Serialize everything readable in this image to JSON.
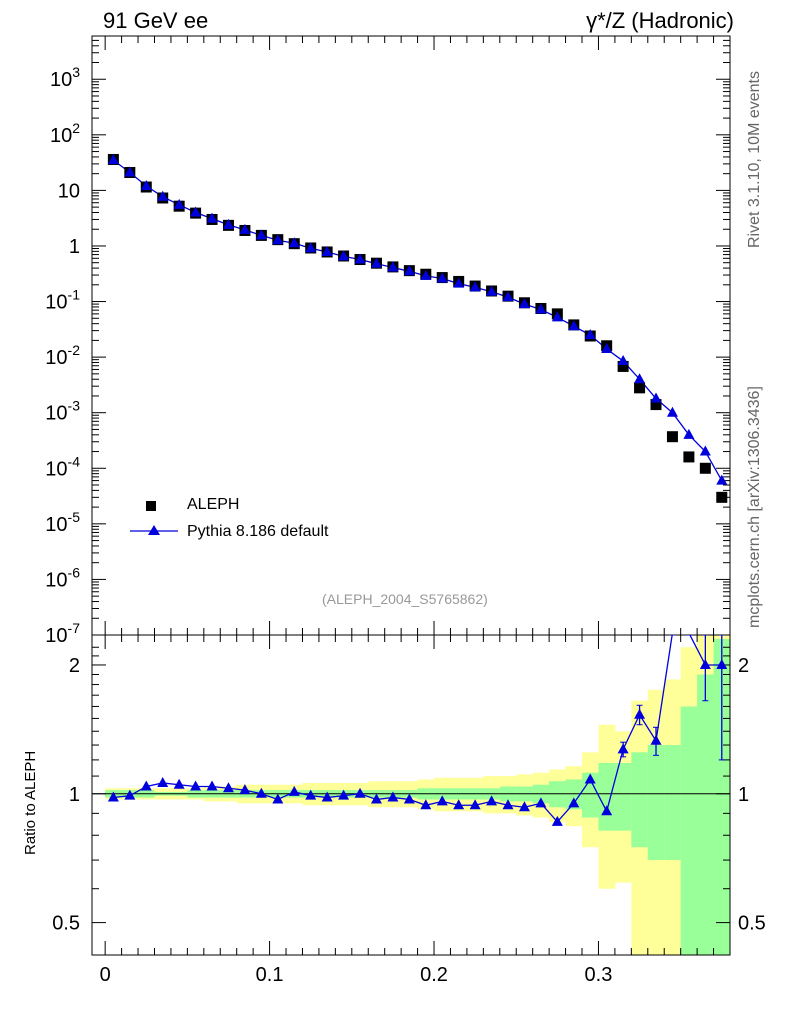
{
  "header": {
    "left_title": "91 GeV ee",
    "right_title": "γ*/Z (Hadronic)"
  },
  "side_texts": {
    "rivet": "Rivet 3.1.10,  10M events",
    "source": "mcplots.cern.ch [arXiv:1306.3436]"
  },
  "analysis_tag": "(ALEPH_2004_S5765862)",
  "colors": {
    "data": "#000000",
    "mc": "#0000dd",
    "band_stat": "#99ff99",
    "band_total": "#ffff99",
    "axis": "#000000"
  },
  "chart_data": [
    {
      "type": "scatter",
      "panel": "main",
      "yscale": "log",
      "xlim": [
        -0.008,
        0.38
      ],
      "ylim": [
        1e-07,
        6000
      ],
      "y_ticks": [
        "10^-7",
        "10^-6",
        "10^-5",
        "10^-4",
        "10^-3",
        "10^-2",
        "10^-1",
        "1",
        "10",
        "10^2",
        "10^3"
      ],
      "legend": {
        "position": "lower-left",
        "entries": [
          "ALEPH",
          "Pythia 8.186 default"
        ]
      },
      "x": [
        0.005,
        0.015,
        0.025,
        0.035,
        0.045,
        0.055,
        0.065,
        0.075,
        0.085,
        0.095,
        0.105,
        0.115,
        0.125,
        0.135,
        0.145,
        0.155,
        0.165,
        0.175,
        0.185,
        0.195,
        0.205,
        0.215,
        0.225,
        0.235,
        0.245,
        0.255,
        0.265,
        0.275,
        0.285,
        0.295,
        0.305,
        0.315,
        0.325,
        0.335,
        0.345,
        0.355,
        0.365,
        0.375
      ],
      "series": [
        {
          "name": "ALEPH",
          "marker": "square",
          "values": [
            36,
            21,
            11.5,
            7.3,
            5.2,
            3.9,
            3.0,
            2.35,
            1.9,
            1.55,
            1.3,
            1.1,
            0.92,
            0.78,
            0.66,
            0.57,
            0.49,
            0.42,
            0.36,
            0.31,
            0.27,
            0.23,
            0.19,
            0.155,
            0.125,
            0.095,
            0.075,
            0.06,
            0.038,
            0.024,
            0.016,
            0.0068,
            0.0028,
            0.0014,
            0.00037,
            0.00016,
            0.0001,
            3e-05
          ]
        },
        {
          "name": "Pythia 8.186 default",
          "marker": "triangle",
          "values": [
            35,
            21,
            12,
            7.7,
            5.5,
            4.0,
            3.1,
            2.4,
            1.95,
            1.55,
            1.27,
            1.12,
            0.91,
            0.78,
            0.65,
            0.57,
            0.48,
            0.41,
            0.35,
            0.29,
            0.26,
            0.21,
            0.18,
            0.15,
            0.12,
            0.09,
            0.072,
            0.052,
            0.036,
            0.025,
            0.014,
            0.0085,
            0.004,
            0.0018,
            0.001,
            0.0004,
            0.0002,
            6e-05
          ]
        }
      ]
    },
    {
      "type": "line",
      "panel": "ratio",
      "yscale": "log",
      "ylabel": "Ratio to ALEPH",
      "xlim": [
        -0.008,
        0.38
      ],
      "ylim": [
        0.42,
        2.35
      ],
      "x_ticks": [
        "0",
        "0.1",
        "0.2",
        "0.3"
      ],
      "y_ticks": [
        "0.5",
        "1",
        "2"
      ],
      "x": [
        0.005,
        0.015,
        0.025,
        0.035,
        0.045,
        0.055,
        0.065,
        0.075,
        0.085,
        0.095,
        0.105,
        0.115,
        0.125,
        0.135,
        0.145,
        0.155,
        0.165,
        0.175,
        0.185,
        0.195,
        0.205,
        0.215,
        0.225,
        0.235,
        0.245,
        0.255,
        0.265,
        0.275,
        0.285,
        0.295,
        0.305,
        0.315,
        0.325,
        0.335,
        0.345,
        0.355,
        0.365,
        0.375
      ],
      "series": [
        {
          "name": "Pythia 8.186 default",
          "values": [
            0.98,
            0.99,
            1.04,
            1.06,
            1.05,
            1.04,
            1.04,
            1.03,
            1.02,
            1.0,
            0.97,
            1.01,
            0.99,
            0.98,
            0.99,
            1.0,
            0.97,
            0.98,
            0.97,
            0.94,
            0.96,
            0.94,
            0.94,
            0.96,
            0.94,
            0.93,
            0.95,
            0.86,
            0.95,
            1.08,
            0.91,
            1.27,
            1.53,
            1.33,
            2.7,
            3.0,
            2.0,
            2.0
          ],
          "errors": [
            0.005,
            0.005,
            0.005,
            0.005,
            0.005,
            0.005,
            0.005,
            0.005,
            0.005,
            0.005,
            0.005,
            0.005,
            0.005,
            0.005,
            0.005,
            0.005,
            0.005,
            0.005,
            0.005,
            0.005,
            0.005,
            0.005,
            0.005,
            0.005,
            0.005,
            0.005,
            0.005,
            0.01,
            0.01,
            0.02,
            0.02,
            0.05,
            0.08,
            0.1,
            0.2,
            0.3,
            0.35,
            0.8
          ]
        }
      ],
      "bands": {
        "stat_lo": [
          0.98,
          0.98,
          0.98,
          0.99,
          0.99,
          0.98,
          0.98,
          0.98,
          0.98,
          0.98,
          0.98,
          0.98,
          0.98,
          0.98,
          0.98,
          0.98,
          0.98,
          0.98,
          0.98,
          0.97,
          0.97,
          0.97,
          0.97,
          0.97,
          0.96,
          0.96,
          0.95,
          0.93,
          0.92,
          0.88,
          0.82,
          0.82,
          0.75,
          0.7,
          0.7,
          0.4,
          0.4,
          0.4
        ],
        "stat_hi": [
          1.02,
          1.02,
          1.02,
          1.01,
          1.01,
          1.02,
          1.02,
          1.02,
          1.02,
          1.02,
          1.02,
          1.02,
          1.02,
          1.02,
          1.02,
          1.02,
          1.02,
          1.02,
          1.02,
          1.03,
          1.03,
          1.03,
          1.03,
          1.03,
          1.04,
          1.04,
          1.05,
          1.07,
          1.08,
          1.12,
          1.18,
          1.18,
          1.25,
          1.3,
          1.3,
          1.6,
          1.9,
          2.3
        ],
        "tot_lo": [
          0.97,
          0.97,
          0.97,
          0.97,
          0.97,
          0.97,
          0.96,
          0.96,
          0.95,
          0.95,
          0.95,
          0.95,
          0.94,
          0.94,
          0.94,
          0.94,
          0.93,
          0.93,
          0.93,
          0.92,
          0.91,
          0.91,
          0.91,
          0.9,
          0.9,
          0.89,
          0.88,
          0.86,
          0.84,
          0.75,
          0.6,
          0.62,
          0.42,
          0.42,
          0.42,
          0.42,
          0.42,
          0.42
        ],
        "tot_hi": [
          1.03,
          1.03,
          1.03,
          1.03,
          1.03,
          1.03,
          1.04,
          1.04,
          1.05,
          1.05,
          1.05,
          1.05,
          1.06,
          1.06,
          1.06,
          1.06,
          1.07,
          1.07,
          1.07,
          1.08,
          1.09,
          1.09,
          1.09,
          1.1,
          1.1,
          1.11,
          1.12,
          1.14,
          1.16,
          1.25,
          1.45,
          1.4,
          1.65,
          1.75,
          1.85,
          2.2,
          2.35,
          2.35
        ]
      }
    }
  ]
}
